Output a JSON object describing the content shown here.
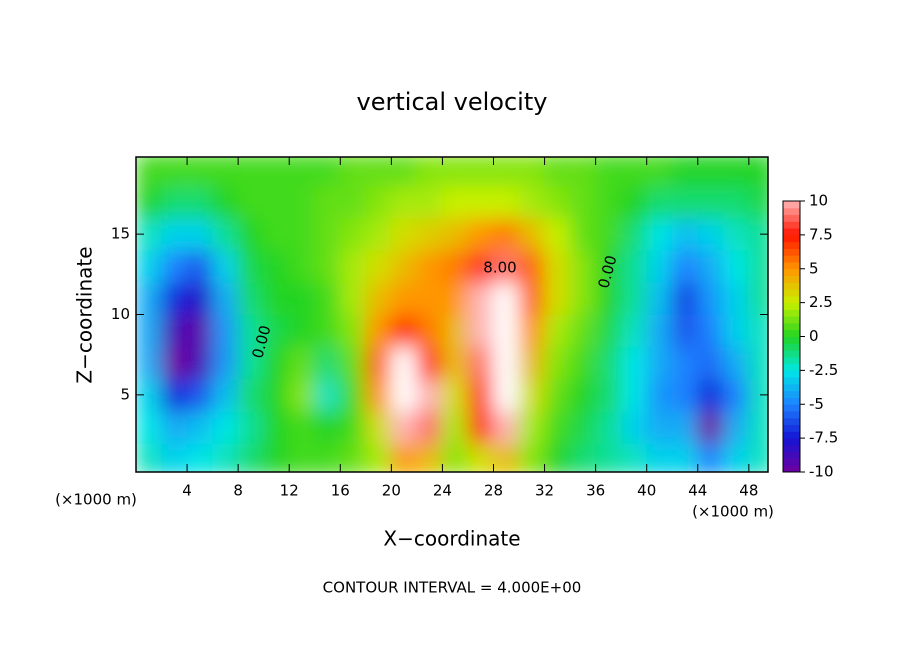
{
  "chart_data": {
    "type": "contour",
    "title": "vertical velocity",
    "xlabel": "X−coordinate",
    "ylabel": "Z−coordinate",
    "x_unit": "(×1000 m)",
    "footer": "CONTOUR INTERVAL = 4.000E+00",
    "annotations": [
      "0.00",
      "8.00",
      "0.00"
    ],
    "xlim": [
      0,
      49.5
    ],
    "ylim": [
      0.2,
      19.8
    ],
    "xticks": [
      4,
      8,
      12,
      16,
      20,
      24,
      28,
      32,
      36,
      40,
      44,
      48
    ],
    "yticks": [
      5,
      10,
      15
    ],
    "x": [
      1,
      3,
      5,
      7,
      9,
      11,
      13,
      15,
      17,
      19,
      21,
      23,
      25,
      27,
      29,
      31,
      33,
      35,
      37,
      39,
      41,
      43,
      45,
      47,
      49
    ],
    "y": [
      1,
      3,
      5,
      7,
      9,
      11,
      13,
      15,
      17,
      19
    ],
    "z": [
      [
        -2,
        -3,
        -2.5,
        -2,
        -1,
        0,
        0.5,
        0.5,
        1,
        2,
        5,
        4,
        1.5,
        3,
        4,
        1.5,
        0,
        -1,
        -1.5,
        -2,
        -3,
        -3,
        -5,
        -3,
        -2
      ],
      [
        -2.5,
        -4,
        -3.5,
        -2.5,
        -1.5,
        0,
        0.5,
        0,
        0.5,
        3,
        10,
        9,
        2,
        7,
        10,
        2,
        0.5,
        -0.5,
        -1.5,
        -3,
        -4,
        -4,
        -11,
        -4,
        -2
      ],
      [
        -3,
        -7,
        -6,
        -3.5,
        -1,
        0,
        1.5,
        -2,
        0.5,
        5,
        11,
        10,
        3,
        8,
        11,
        3,
        1,
        0,
        -1,
        -2.5,
        -4.5,
        -5,
        -7,
        -5,
        -2
      ],
      [
        -4,
        -11,
        -9,
        -4.5,
        -1.5,
        0,
        1,
        -1,
        1,
        6,
        11,
        8,
        4,
        9,
        11,
        4,
        1.5,
        0.5,
        -1,
        -2.5,
        -4,
        -5,
        -5.5,
        -4,
        -2
      ],
      [
        -4,
        -9,
        -9.5,
        -4.5,
        -1.5,
        -0.5,
        0,
        0.5,
        1.5,
        5,
        7,
        5.5,
        4,
        10,
        11,
        5,
        2,
        1,
        -0.5,
        -2,
        -4,
        -6,
        -5,
        -3,
        -2
      ],
      [
        -4,
        -7,
        -8,
        -4,
        -1,
        0,
        0,
        0.5,
        2,
        4,
        5,
        5,
        5,
        10,
        11,
        6,
        3,
        1.5,
        0,
        -1.5,
        -3.5,
        -6.5,
        -4.5,
        -3,
        -1.5
      ],
      [
        -3,
        -5,
        -6,
        -3,
        -0.5,
        0,
        0.5,
        1,
        2,
        3,
        4,
        5,
        5.5,
        8,
        9,
        6,
        3,
        1.5,
        0,
        -1.5,
        -3,
        -5,
        -4,
        -2.5,
        -1.5
      ],
      [
        -2,
        -3,
        -3,
        -1.5,
        0,
        0.5,
        0.5,
        1,
        1.5,
        2,
        3,
        3.5,
        4,
        5,
        5.5,
        4,
        2.5,
        1,
        0.5,
        -1,
        -2.5,
        -3.5,
        -3,
        -2,
        -1.5
      ],
      [
        0,
        -1,
        -1,
        0,
        0.5,
        0.5,
        0.5,
        1,
        1,
        1.5,
        2,
        2,
        2.5,
        2.5,
        2.5,
        2,
        1.5,
        1,
        0.5,
        0,
        -1,
        -1,
        -1,
        -1,
        -0.5
      ],
      [
        0.5,
        0.5,
        0.5,
        0.5,
        0.5,
        0.5,
        0.5,
        0.5,
        1,
        1,
        1,
        1.5,
        1.5,
        1.5,
        1.5,
        1.5,
        1,
        1,
        0.5,
        0.5,
        0.5,
        0,
        0,
        0,
        0
      ]
    ],
    "colorbar_ticks": [
      -10,
      -7.5,
      -5,
      -2.5,
      0,
      2.5,
      5,
      7.5,
      10
    ],
    "colors": [
      "#7000a0",
      "#1414d2",
      "#1e82ff",
      "#00e6e6",
      "#22d422",
      "#c8f000",
      "#ff9600",
      "#ff1400",
      "#ffb4b4"
    ],
    "over_color": "#ffffff"
  }
}
